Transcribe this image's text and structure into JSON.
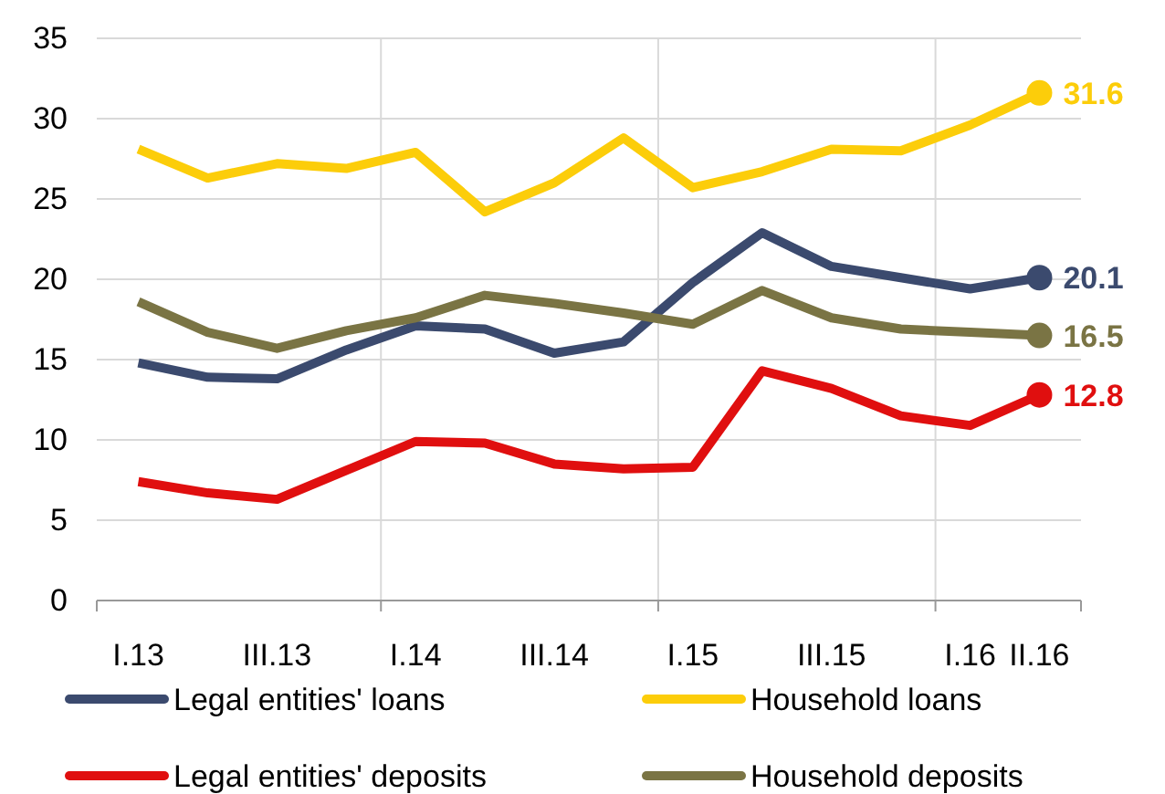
{
  "chart_data": {
    "type": "line",
    "categories": [
      "I.13",
      null,
      "III.13",
      null,
      "I.14",
      null,
      "III.14",
      null,
      "I.15",
      null,
      "III.15",
      null,
      "I.16",
      "II.16"
    ],
    "ylim": [
      0,
      35
    ],
    "yticks": [
      0,
      5,
      10,
      15,
      20,
      25,
      30,
      35
    ],
    "grid": true,
    "legend": "bottom",
    "series": [
      {
        "name": "Legal entities' loans",
        "color": "#3b4a6e",
        "values": [
          14.8,
          13.9,
          13.8,
          15.6,
          17.1,
          16.9,
          15.4,
          16.1,
          19.8,
          22.9,
          20.8,
          20.1,
          19.4,
          20.1
        ],
        "value_labels": [
          null,
          null,
          null,
          null,
          null,
          null,
          null,
          null,
          null,
          null,
          null,
          null,
          null,
          "20.1"
        ]
      },
      {
        "name": "Household loans",
        "color": "#fccd0a",
        "values": [
          28.1,
          26.3,
          27.2,
          26.9,
          27.9,
          24.2,
          26.0,
          28.8,
          25.7,
          26.7,
          28.1,
          28.0,
          29.6,
          31.6
        ],
        "value_labels": [
          null,
          null,
          null,
          null,
          null,
          null,
          null,
          null,
          null,
          null,
          null,
          null,
          null,
          "31.6"
        ]
      },
      {
        "name": "Legal entities' deposits",
        "color": "#e00f0f",
        "values": [
          7.4,
          6.7,
          6.3,
          8.1,
          9.9,
          9.8,
          8.5,
          8.2,
          8.3,
          14.3,
          13.2,
          11.5,
          10.9,
          12.8
        ],
        "value_labels": [
          null,
          null,
          null,
          null,
          null,
          null,
          null,
          null,
          null,
          null,
          null,
          null,
          null,
          "12.8"
        ]
      },
      {
        "name": "Household deposits",
        "color": "#7a7444",
        "values": [
          18.6,
          16.7,
          15.7,
          16.8,
          17.6,
          19.0,
          18.5,
          17.9,
          17.2,
          19.3,
          17.6,
          16.9,
          16.7,
          16.5
        ],
        "value_labels": [
          null,
          null,
          null,
          null,
          null,
          null,
          null,
          null,
          null,
          null,
          null,
          null,
          null,
          "16.5"
        ]
      }
    ]
  }
}
